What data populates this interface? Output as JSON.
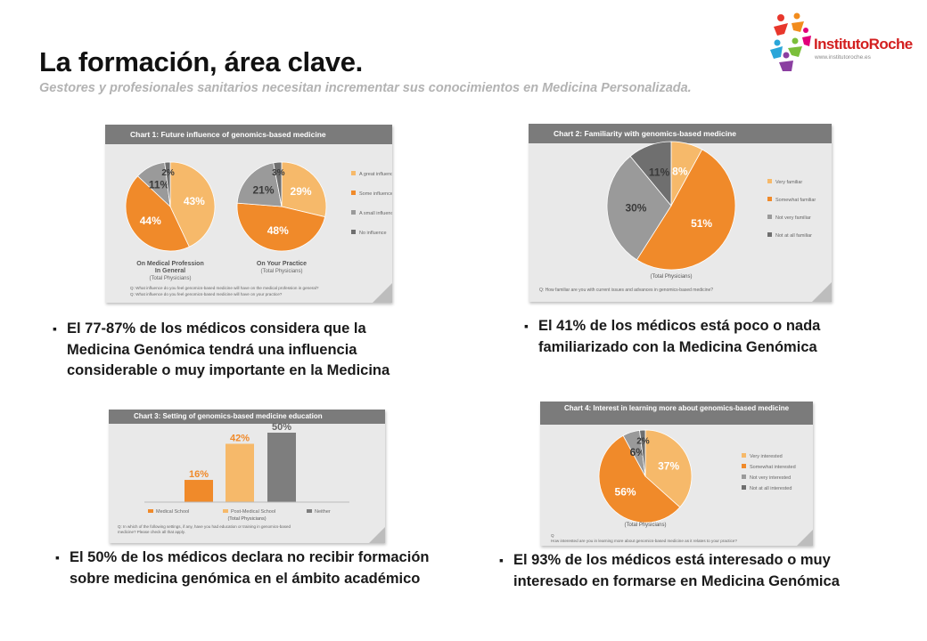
{
  "header": {
    "title": "La formación, área clave.",
    "subtitle": "Gestores y profesionales sanitarios necesitan incrementar sus conocimientos en Medicina Personalizada."
  },
  "logo": {
    "name": "InstitutoRoche",
    "url": "www.institutoroche.es"
  },
  "colors": {
    "orange": "#f08a2a",
    "light_orange": "#f6b96a",
    "grey": "#9a9a9a",
    "dark_grey": "#6f6f6f",
    "band": "#7b7b7b",
    "card": "#e9e9e9"
  },
  "chart_data": [
    {
      "type": "pie",
      "title": "Chart 1: Future influence of genomics-based medicine",
      "legend_placement": "right",
      "legend": [
        "A great influence",
        "Some influence",
        "A small influence",
        "No influence"
      ],
      "pies": [
        {
          "label_lines": [
            "On Medical Profession",
            "In General"
          ],
          "sublabel": "(Total Physicians)",
          "slices": [
            {
              "name": "A great influence",
              "value": 43
            },
            {
              "name": "Some influence",
              "value": 44
            },
            {
              "name": "A small influence",
              "value": 11
            },
            {
              "name": "No influence",
              "value": 2
            }
          ]
        },
        {
          "label_lines": [
            "On Your Practice"
          ],
          "sublabel": "(Total Physicians)",
          "slices": [
            {
              "name": "A great influence",
              "value": 29
            },
            {
              "name": "Some influence",
              "value": 48
            },
            {
              "name": "A small influence",
              "value": 21
            },
            {
              "name": "No influence",
              "value": 3
            }
          ]
        }
      ],
      "questions": [
        "Q: What influence do you feel genomics-based medicine will have on the medical profession in general?",
        "Q: What influence do you feel genomics-based medicine will have on your practice?"
      ]
    },
    {
      "type": "pie",
      "title": "Chart 2: Familiarity with genomics-based medicine",
      "legend_placement": "right",
      "legend": [
        "Very familiar",
        "Somewhat familiar",
        "Not very familiar",
        "Not at all familiar"
      ],
      "pies": [
        {
          "sublabel": "(Total Physicians)",
          "slices": [
            {
              "name": "Very familiar",
              "value": 8
            },
            {
              "name": "Somewhat familiar",
              "value": 51
            },
            {
              "name": "Not very familiar",
              "value": 30
            },
            {
              "name": "Not at all familiar",
              "value": 11
            }
          ]
        }
      ],
      "questions": [
        "Q: How familiar are you with current issues and advances in genomics-based medicine?"
      ]
    },
    {
      "type": "bar",
      "title": "Chart 3: Setting of genomics-based medicine education",
      "legend_placement": "bottom",
      "categories": [
        "Medical School",
        "Post-Medical School",
        "Neither"
      ],
      "values": [
        16,
        42,
        50
      ],
      "ylim": [
        0,
        50
      ],
      "sublabel": "(Total Physicians)",
      "questions": [
        "Q: In which of the following settings, if any, have you had education or training in genomics-based medicine? Please check all that apply."
      ]
    },
    {
      "type": "pie",
      "title": "Chart 4: Interest in learning more about genomics-based medicine",
      "legend_placement": "right",
      "legend": [
        "Very interested",
        "Somewhat interested",
        "Not very interested",
        "Not at all interested"
      ],
      "pies": [
        {
          "sublabel": "(Total Physicians)",
          "slices": [
            {
              "name": "Very interested",
              "value": 37
            },
            {
              "name": "Somewhat interested",
              "value": 56
            },
            {
              "name": "Not very interested",
              "value": 6
            },
            {
              "name": "Not at all interested",
              "value": 2
            }
          ]
        }
      ],
      "questions": [
        "Q: How interested are you in learning more about genomics-based medicine as it relates to your practice?"
      ]
    }
  ],
  "bullets": [
    "El 77-87% de los médicos considera que la Medicina Genómica tendrá una influencia considerable o muy importante en la Medicina",
    "El 41% de los médicos está poco o nada familiarizado con la Medicina Genómica",
    "El 50% de los médicos declara no recibir formación sobre medicina genómica en el ámbito académico",
    "El 93% de los médicos está interesado o muy interesado en formarse en Medicina Genómica"
  ],
  "bullet_marker": "▪"
}
